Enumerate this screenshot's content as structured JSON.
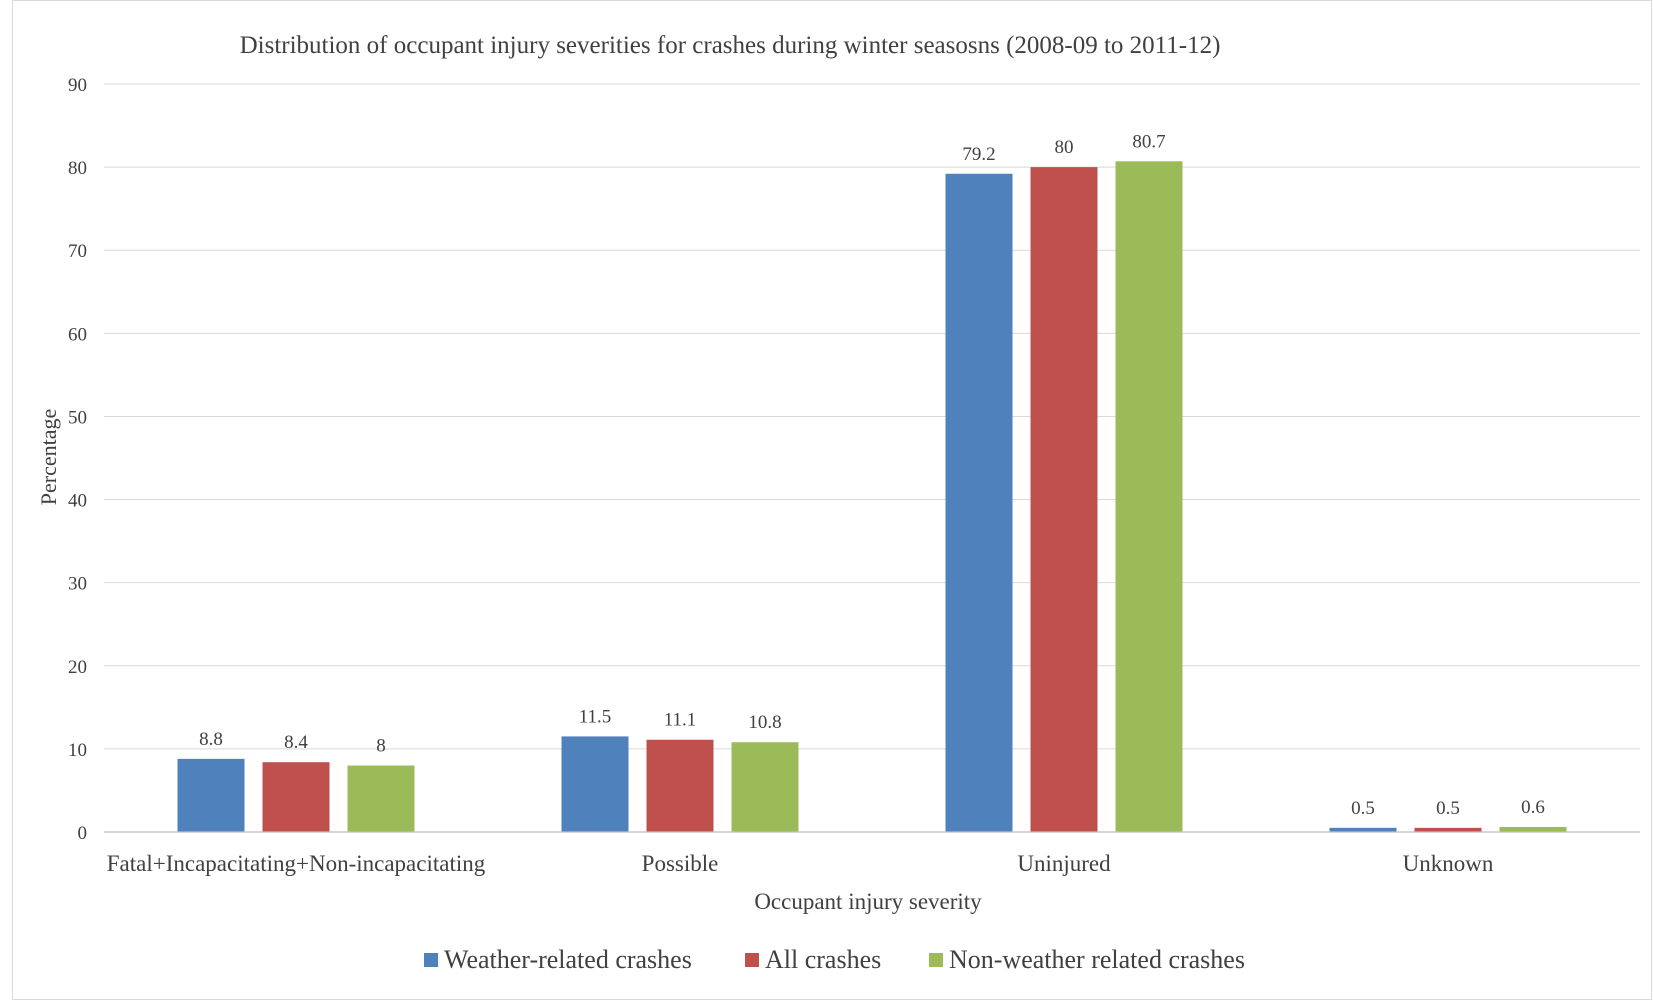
{
  "chart_data": {
    "type": "bar",
    "title": "Distribution of occupant injury severities for crashes during winter seasosns (2008-09 to 2011-12)",
    "xlabel": "Occupant injury severity",
    "ylabel": "Percentage",
    "categories": [
      "Fatal+Incapacitating+Non-incapacitating",
      "Possible",
      "Uninjured",
      "Unknown"
    ],
    "series": [
      {
        "name": "Weather-related crashes",
        "color": "#4f81bd",
        "values": [
          8.8,
          11.5,
          79.2,
          0.5
        ],
        "labels": [
          "8.8",
          "11.5",
          "79.2",
          "0.5"
        ]
      },
      {
        "name": "All crashes",
        "color": "#c0504d",
        "values": [
          8.4,
          11.1,
          80,
          0.5
        ],
        "labels": [
          "8.4",
          "11.1",
          "80",
          "0.5"
        ]
      },
      {
        "name": "Non-weather related crashes",
        "color": "#9bbb59",
        "values": [
          8,
          10.8,
          80.7,
          0.6
        ],
        "labels": [
          "8",
          "10.8",
          "80.7",
          "0.6"
        ]
      }
    ],
    "yticks": [
      "0",
      "10",
      "20",
      "30",
      "40",
      "50",
      "60",
      "70",
      "80",
      "90"
    ],
    "ylim": [
      0,
      90
    ],
    "grid": true,
    "legend_position": "bottom"
  }
}
